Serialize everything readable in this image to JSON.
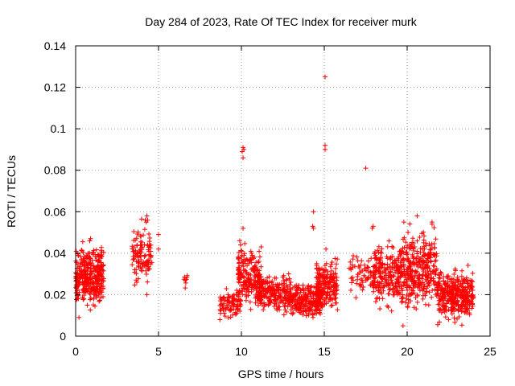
{
  "chart_data": {
    "type": "scatter",
    "title": "Day 284 of 2023, Rate Of TEC Index for receiver murk",
    "xlabel": "GPS time / hours",
    "ylabel": "ROTI / TECUs",
    "xlim": [
      0,
      25
    ],
    "ylim": [
      0,
      0.14
    ],
    "xticks": [
      0,
      5,
      10,
      15,
      20,
      25
    ],
    "yticks": [
      0,
      0.02,
      0.04,
      0.06,
      0.08,
      0.1,
      0.12,
      0.14
    ],
    "ytick_labels": [
      "0",
      "0.02",
      "0.04",
      "0.06",
      "0.08",
      "0.1",
      "0.12",
      "0.14"
    ],
    "grid": true,
    "marker": "plus",
    "color": "#ff0000",
    "series": [
      {
        "clusters": [
          {
            "x": [
              0.0,
              1.7
            ],
            "y": [
              0.009,
              0.048
            ],
            "n": 340
          },
          {
            "x": [
              3.4,
              4.6
            ],
            "y": [
              0.02,
              0.058
            ],
            "n": 120
          },
          {
            "x": [
              6.5,
              6.8
            ],
            "y": [
              0.022,
              0.031
            ],
            "n": 8
          },
          {
            "x": [
              8.7,
              10.0
            ],
            "y": [
              0.007,
              0.025
            ],
            "n": 90
          },
          {
            "x": [
              9.8,
              11.2
            ],
            "y": [
              0.01,
              0.047
            ],
            "n": 200
          },
          {
            "x": [
              11.0,
              13.0
            ],
            "y": [
              0.008,
              0.032
            ],
            "n": 230
          },
          {
            "x": [
              13.0,
              14.8
            ],
            "y": [
              0.006,
              0.028
            ],
            "n": 230
          },
          {
            "x": [
              14.5,
              15.8
            ],
            "y": [
              0.01,
              0.04
            ],
            "n": 200
          },
          {
            "x": [
              16.5,
              17.9
            ],
            "y": [
              0.014,
              0.045
            ],
            "n": 60
          },
          {
            "x": [
              17.9,
              19.5
            ],
            "y": [
              0.01,
              0.05
            ],
            "n": 210
          },
          {
            "x": [
              19.5,
              21.8
            ],
            "y": [
              0.008,
              0.056
            ],
            "n": 360
          },
          {
            "x": [
              21.8,
              24.0
            ],
            "y": [
              0.004,
              0.035
            ],
            "n": 360
          }
        ],
        "points": [
          [
            15.05,
            0.125
          ],
          [
            15.05,
            0.092
          ],
          [
            15.05,
            0.09
          ],
          [
            10.1,
            0.091
          ],
          [
            10.15,
            0.09
          ],
          [
            10.05,
            0.089
          ],
          [
            10.1,
            0.086
          ],
          [
            17.5,
            0.081
          ],
          [
            14.35,
            0.06
          ],
          [
            14.3,
            0.053
          ],
          [
            14.35,
            0.052
          ],
          [
            10.1,
            0.052
          ],
          [
            4.3,
            0.058
          ],
          [
            4.2,
            0.056
          ],
          [
            5.0,
            0.049
          ],
          [
            5.0,
            0.042
          ],
          [
            15.1,
            0.042
          ],
          [
            17.9,
            0.052
          ],
          [
            17.95,
            0.053
          ],
          [
            20.6,
            0.058
          ],
          [
            21.5,
            0.055
          ],
          [
            21.5,
            0.054
          ],
          [
            19.8,
            0.055
          ],
          [
            9.9,
            0.046
          ],
          [
            9.95,
            0.044
          ],
          [
            0.9,
            0.047
          ],
          [
            0.85,
            0.046
          ],
          [
            4.3,
            0.02
          ],
          [
            0.2,
            0.009
          ],
          [
            19.75,
            0.005
          ]
        ]
      }
    ]
  }
}
